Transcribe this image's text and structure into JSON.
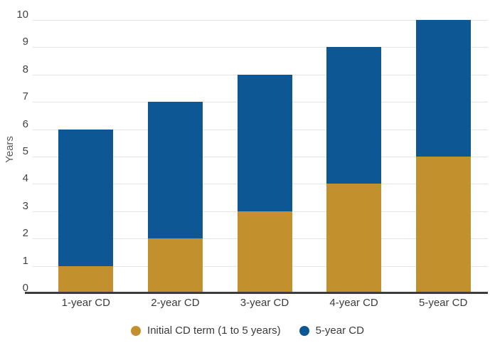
{
  "chart_data": {
    "type": "bar",
    "stacked": true,
    "title": "",
    "categories": [
      "1-year CD",
      "2-year CD",
      "3-year CD",
      "4-year CD",
      "5-year CD"
    ],
    "series": [
      {
        "name": "Initial CD term (1 to 5 years)",
        "color": "#C2912E",
        "values": [
          1,
          2,
          3,
          4,
          5
        ]
      },
      {
        "name": "5-year CD",
        "color": "#0C5794",
        "values": [
          5,
          5,
          5,
          5,
          5
        ]
      }
    ],
    "totals": [
      6,
      7,
      8,
      9,
      10
    ],
    "xlabel": "",
    "ylabel": "Years",
    "ylim": [
      0,
      10
    ],
    "yticks": [
      0,
      1,
      2,
      3,
      4,
      5,
      6,
      7,
      8,
      9,
      10
    ],
    "grid": true,
    "legend_position": "bottom"
  }
}
